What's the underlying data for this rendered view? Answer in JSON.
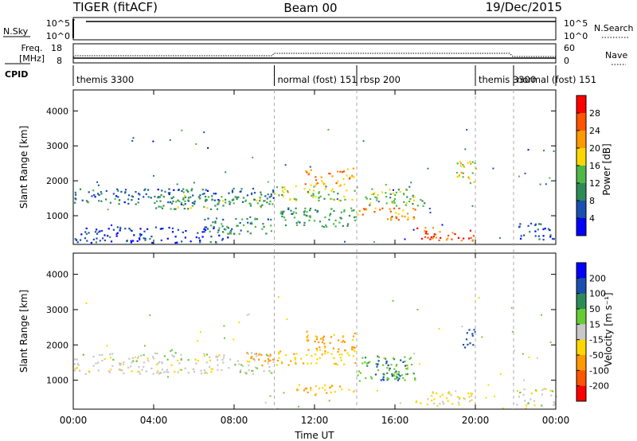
{
  "header": {
    "left": "TIGER (fitACF)",
    "center": "Beam 00",
    "right": "19/Dec/2015"
  },
  "strips": {
    "nsky": {
      "label": "N.Sky",
      "ticks": [
        "10^5",
        "10^0"
      ],
      "right_ticks": [
        "10^5",
        "10^0"
      ],
      "right_label": "N.Search"
    },
    "freq": {
      "label_line1": "Freq.",
      "label_line2": "[MHz]",
      "ticks": [
        "18",
        "8"
      ],
      "right_ticks": [
        "60",
        "0"
      ],
      "right_label": "Nave"
    },
    "cpid": {
      "label": "CPID",
      "modes": [
        {
          "label": "themis 3300",
          "start": 0.0
        },
        {
          "label": "normal (fost) 151",
          "start": 10.0
        },
        {
          "label": "rbsp 200",
          "start": 14.1
        },
        {
          "label": "themis 3300",
          "start": 20.0
        },
        {
          "label": "normal (fost) 151",
          "start": 21.9
        }
      ]
    }
  },
  "panels": [
    {
      "name": "power",
      "ylabel": "Slant Range [km]",
      "yticks": [
        "4000",
        "3000",
        "2000",
        "1000"
      ],
      "colorbar_label": "Power [dB]",
      "colorbar_ticks": [
        "28",
        "24",
        "20",
        "16",
        "12",
        "8",
        "4"
      ],
      "colors": [
        "#0000ff",
        "#1a4fb0",
        "#2e8b57",
        "#4fb848",
        "#ffd700",
        "#ff9900",
        "#ff5500",
        "#ff0000"
      ]
    },
    {
      "name": "velocity",
      "ylabel": "Slant Range [km]",
      "yticks": [
        "4000",
        "3000",
        "2000",
        "1000"
      ],
      "colorbar_label": "Velocity [m s⁻¹]",
      "colorbar_ticks": [
        "200",
        "100",
        "50",
        "15",
        "-15",
        "-50",
        "-100",
        "-200"
      ],
      "colors": [
        "#0000ff",
        "#1a4fb0",
        "#2e8b57",
        "#66cc33",
        "#c8c8c8",
        "#ffd700",
        "#ff9900",
        "#ff5500",
        "#ff0000"
      ]
    }
  ],
  "xaxis": {
    "label": "Time UT",
    "ticks": [
      "00:00",
      "04:00",
      "08:00",
      "12:00",
      "16:00",
      "20:00",
      "00:00"
    ]
  },
  "chart_data": {
    "type": "heatmap",
    "title": "TIGER (fitACF)",
    "subtitle": "Beam 00",
    "date": "19/Dec/2015",
    "x_range_hours": [
      0,
      24
    ],
    "y_range_km": [
      180,
      4600
    ],
    "mode_boundaries_hours": [
      10.0,
      14.1,
      20.0,
      21.9
    ],
    "power_regions": [
      {
        "t": [
          0.0,
          10.0
        ],
        "r": [
          1350,
          1800
        ],
        "power_db": 9
      },
      {
        "t": [
          4.0,
          10.0
        ],
        "r": [
          1200,
          1600
        ],
        "power_db": 13
      },
      {
        "t": [
          0.0,
          8.0
        ],
        "r": [
          250,
          700
        ],
        "power_db": 6
      },
      {
        "t": [
          6.5,
          10.0
        ],
        "r": [
          500,
          950
        ],
        "power_db": 12
      },
      {
        "t": [
          10.0,
          14.0
        ],
        "r": [
          1450,
          1900
        ],
        "power_db": 16
      },
      {
        "t": [
          11.5,
          14.0
        ],
        "r": [
          1900,
          2400
        ],
        "power_db": 21
      },
      {
        "t": [
          10.0,
          14.0
        ],
        "r": [
          700,
          1250
        ],
        "power_db": 12
      },
      {
        "t": [
          14.1,
          17.0
        ],
        "r": [
          900,
          1250
        ],
        "power_db": 22
      },
      {
        "t": [
          14.5,
          17.5
        ],
        "r": [
          1300,
          1800
        ],
        "power_db": 15
      },
      {
        "t": [
          17.0,
          20.0
        ],
        "r": [
          300,
          700
        ],
        "power_db": 25
      },
      {
        "t": [
          19.0,
          20.0
        ],
        "r": [
          1900,
          2600
        ],
        "power_db": 18
      },
      {
        "t": [
          22.0,
          24.0
        ],
        "r": [
          300,
          800
        ],
        "power_db": 8
      }
    ],
    "velocity_regions": [
      {
        "t": [
          0.0,
          10.0
        ],
        "r": [
          1200,
          1800
        ],
        "velocity": 0
      },
      {
        "t": [
          8.5,
          10.0
        ],
        "r": [
          1400,
          1800
        ],
        "velocity": -80
      },
      {
        "t": [
          10.0,
          14.0
        ],
        "r": [
          1450,
          1900
        ],
        "velocity": -40
      },
      {
        "t": [
          11.5,
          14.0
        ],
        "r": [
          1900,
          2400
        ],
        "velocity": -60
      },
      {
        "t": [
          11.0,
          14.0
        ],
        "r": [
          600,
          900
        ],
        "velocity": -50
      },
      {
        "t": [
          14.1,
          17.0
        ],
        "r": [
          1000,
          1700
        ],
        "velocity": 40
      },
      {
        "t": [
          15.0,
          16.5
        ],
        "r": [
          1000,
          1600
        ],
        "velocity": 150
      },
      {
        "t": [
          17.0,
          20.0
        ],
        "r": [
          300,
          700
        ],
        "velocity": -20
      },
      {
        "t": [
          19.3,
          20.0
        ],
        "r": [
          1900,
          2500
        ],
        "velocity": 120
      },
      {
        "t": [
          22.0,
          24.0
        ],
        "r": [
          300,
          800
        ],
        "velocity": 0
      }
    ]
  }
}
